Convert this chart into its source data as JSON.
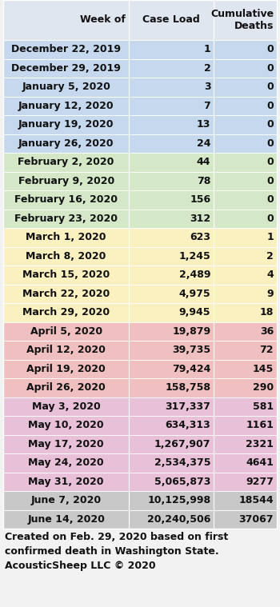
{
  "headers": [
    "Week of",
    "Case Load",
    "Cumulative\nDeaths"
  ],
  "rows": [
    [
      "December 22, 2019",
      "1",
      "0"
    ],
    [
      "December 29, 2019",
      "2",
      "0"
    ],
    [
      "January 5, 2020",
      "3",
      "0"
    ],
    [
      "January 12, 2020",
      "7",
      "0"
    ],
    [
      "January 19, 2020",
      "13",
      "0"
    ],
    [
      "January 26, 2020",
      "24",
      "0"
    ],
    [
      "February 2, 2020",
      "44",
      "0"
    ],
    [
      "February 9, 2020",
      "78",
      "0"
    ],
    [
      "February 16, 2020",
      "156",
      "0"
    ],
    [
      "February 23, 2020",
      "312",
      "0"
    ],
    [
      "March 1, 2020",
      "623",
      "1"
    ],
    [
      "March 8, 2020",
      "1,245",
      "2"
    ],
    [
      "March 15, 2020",
      "2,489",
      "4"
    ],
    [
      "March 22, 2020",
      "4,975",
      "9"
    ],
    [
      "March 29, 2020",
      "9,945",
      "18"
    ],
    [
      "April 5, 2020",
      "19,879",
      "36"
    ],
    [
      "April 12, 2020",
      "39,735",
      "72"
    ],
    [
      "April 19, 2020",
      "79,424",
      "145"
    ],
    [
      "April 26, 2020",
      "158,758",
      "290"
    ],
    [
      "May 3, 2020",
      "317,337",
      "581"
    ],
    [
      "May 10, 2020",
      "634,313",
      "1161"
    ],
    [
      "May 17, 2020",
      "1,267,907",
      "2321"
    ],
    [
      "May 24, 2020",
      "2,534,375",
      "4641"
    ],
    [
      "May 31, 2020",
      "5,065,873",
      "9277"
    ],
    [
      "June 7, 2020",
      "10,125,998",
      "18544"
    ],
    [
      "June 14, 2020",
      "20,240,506",
      "37067"
    ]
  ],
  "row_colors": [
    "#c5d8ee",
    "#c5d8ee",
    "#c5d8ee",
    "#c5d8ee",
    "#c5d8ee",
    "#c5d8ee",
    "#d4e8c8",
    "#d4e8c8",
    "#d4e8c8",
    "#d4e8c8",
    "#faf0c0",
    "#faf0c0",
    "#faf0c0",
    "#faf0c0",
    "#faf0c0",
    "#f0c0c0",
    "#f0c0c0",
    "#f0c0c0",
    "#f0c0c0",
    "#e8c0d8",
    "#e8c0d8",
    "#e8c0d8",
    "#e8c0d8",
    "#e8c0d8",
    "#c8c8c8",
    "#c8c8c8"
  ],
  "header_color": "#e0e6f0",
  "font_size": 9,
  "header_font_size": 9,
  "footer_text": "Created on Feb. 29, 2020 based on first\nconfirmed death in Washington State.\nAcousticSheep LLC © 2020",
  "footer_fontsize": 9,
  "bg_color": "#f2f2f2",
  "fig_width": 3.5,
  "fig_height": 7.59,
  "dpi": 100
}
